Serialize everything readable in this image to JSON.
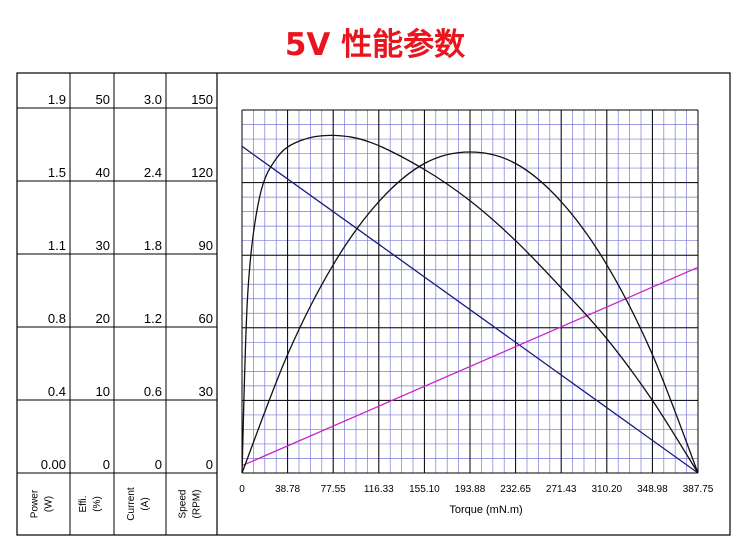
{
  "chart_data": {
    "type": "line",
    "title": "5V 性能参数",
    "xlabel": "Torque (mN.m)",
    "x_ticks": [
      "0",
      "38.78",
      "77.55",
      "116.33",
      "155.10",
      "193.88",
      "232.65",
      "271.43",
      "310.20",
      "348.98",
      "387.75"
    ],
    "xlim": [
      0,
      387.75
    ],
    "y_axes": [
      {
        "label": "Power (W)",
        "ticks": [
          "1.9",
          "1.5",
          "1.1",
          "0.8",
          "0.4",
          "0.00"
        ],
        "ylim": [
          0,
          1.9
        ]
      },
      {
        "label": "Effi. (%)",
        "ticks": [
          "50",
          "40",
          "30",
          "20",
          "10",
          "0"
        ],
        "ylim": [
          0,
          50
        ]
      },
      {
        "label": "Current (A)",
        "ticks": [
          "3.0",
          "2.4",
          "1.8",
          "1.2",
          "0.6",
          "0"
        ],
        "ylim": [
          0,
          3.0
        ]
      },
      {
        "label": "Speed (RPM)",
        "ticks": [
          "150",
          "120",
          "90",
          "60",
          "30",
          "0"
        ],
        "ylim": [
          0,
          150
        ]
      }
    ],
    "grid": true,
    "series": [
      {
        "color": "#1a1a80",
        "axis": 3,
        "x": [
          0,
          387.75
        ],
        "y": [
          135,
          0
        ]
      },
      {
        "color": "#cc22cc",
        "axis": 2,
        "x": [
          0,
          387.75
        ],
        "y": [
          0.06,
          1.7
        ]
      },
      {
        "color": "#111111",
        "axis": 0,
        "x": [
          0,
          38.78,
          77.55,
          116.33,
          155.1,
          193.88,
          232.65,
          271.43,
          310.2,
          348.98,
          387.75
        ],
        "y": [
          0,
          0.62,
          1.09,
          1.42,
          1.62,
          1.68,
          1.62,
          1.42,
          1.09,
          0.62,
          0
        ]
      },
      {
        "color": "#111111",
        "axis": 1,
        "x": [
          0,
          5,
          15,
          30,
          50,
          77.55,
          110,
          155.1,
          193.88,
          232.65,
          271.43,
          310.2,
          348.98,
          387.75
        ],
        "y": [
          0,
          25,
          38,
          43.5,
          45.8,
          46.5,
          45.5,
          41.8,
          37.5,
          32,
          25.5,
          18.5,
          10,
          0
        ]
      }
    ]
  }
}
